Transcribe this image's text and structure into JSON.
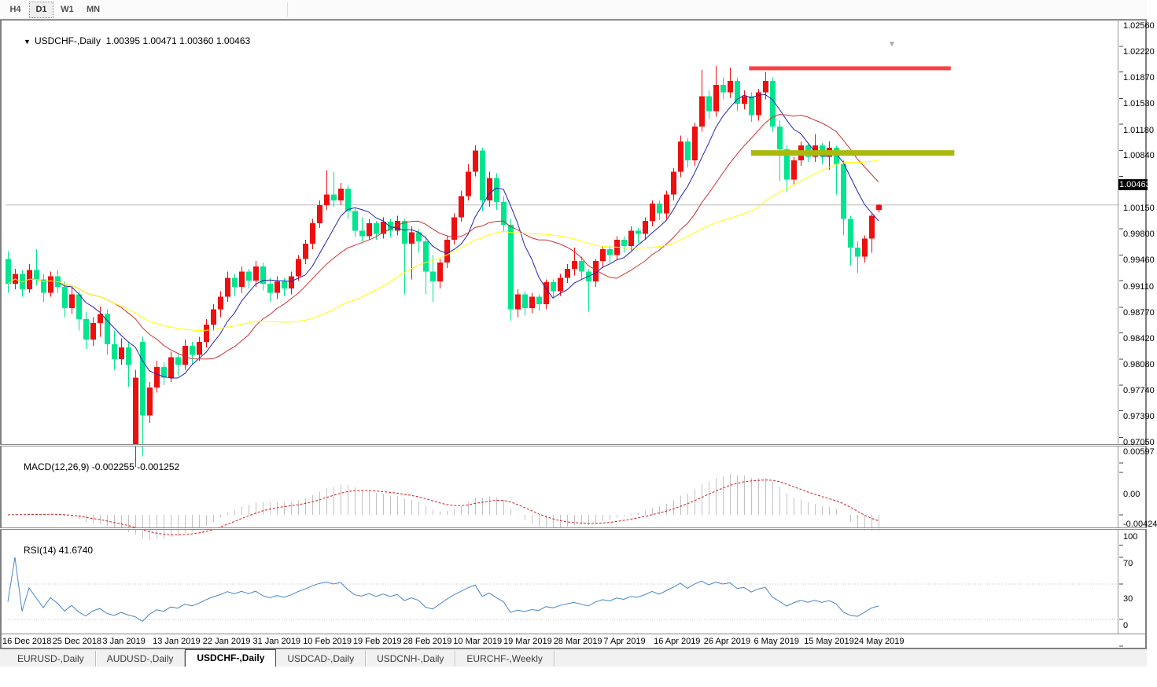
{
  "toolbar": {
    "buttons": [
      "H4",
      "D1",
      "W1",
      "MN"
    ],
    "active": "D1"
  },
  "header": {
    "collapse_icon": "▼",
    "symbol": "USDCHF-,Daily",
    "open": "1.00395",
    "high": "1.00471",
    "low": "1.00360",
    "close": "1.00463"
  },
  "price_axis": {
    "ticks": [
      "1.02560",
      "1.02220",
      "1.01870",
      "1.01530",
      "1.01180",
      "1.00840",
      "1.00150",
      "0.99800",
      "0.99460",
      "0.99110",
      "0.98770",
      "0.98420",
      "0.98080",
      "0.97740",
      "0.97390",
      "0.97050"
    ],
    "current_label": "1.00463"
  },
  "macd_panel": {
    "label": "MACD(12,26,9)",
    "values": "-0.002255 -0.001252",
    "ticks": [
      "0.00597",
      "0.00",
      "-0.00424"
    ]
  },
  "rsi_panel": {
    "label": "RSI(14)",
    "value": "41.6740",
    "ticks": [
      "100",
      "70",
      "30",
      "0"
    ]
  },
  "date_axis": {
    "labels": [
      "16 Dec 2018",
      "25 Dec 2018",
      "3 Jan 2019",
      "13 Jan 2019",
      "22 Jan 2019",
      "31 Jan 2019",
      "10 Feb 2019",
      "19 Feb 2019",
      "28 Feb 2019",
      "10 Mar 2019",
      "19 Mar 2019",
      "28 Mar 2019",
      "7 Apr 2019",
      "16 Apr 2019",
      "26 Apr 2019",
      "6 May 2019",
      "15 May 2019",
      "24 May 2019"
    ]
  },
  "tabs": {
    "items": [
      "EURUSD-,Daily",
      "AUDUSD-,Daily",
      "USDCHF-,Daily",
      "USDCAD-,Daily",
      "USDCNH-,Daily",
      "EURCHF-,Weekly"
    ],
    "active_index": 2
  },
  "colors": {
    "bull_candle": "#ee0f0f",
    "bear_candle": "#00e58f",
    "ma_fast": "#2323b4",
    "ma_mid": "#cd3232",
    "ma_slow": "#ffff00",
    "macd_hist": "#c2c2c2",
    "macd_signal": "#d02020",
    "rsi_line": "#4a86c8",
    "rsi_levels": "#c4c4c4",
    "resistance_line": "#f84343",
    "support_line": "#a9ba0d",
    "price_line": "#b8b8b8",
    "axis_tick": "#444444"
  },
  "chart_data": {
    "type": "candlestick",
    "symbol": "USDCHF",
    "timeframe": "Daily",
    "title": "USDCHF-,Daily",
    "y_range": [
      0.9705,
      1.0256
    ],
    "current_price": 1.00463,
    "last_bar": {
      "open": 1.00395,
      "high": 1.00471,
      "low": 1.0036,
      "close": 1.00463
    },
    "x_dates": [
      "16 Dec 2018",
      "25 Dec 2018",
      "3 Jan 2019",
      "13 Jan 2019",
      "22 Jan 2019",
      "31 Jan 2019",
      "10 Feb 2019",
      "19 Feb 2019",
      "28 Feb 2019",
      "10 Mar 2019",
      "19 Mar 2019",
      "28 Mar 2019",
      "7 Apr 2019",
      "16 Apr 2019",
      "26 Apr 2019",
      "6 May 2019",
      "15 May 2019",
      "24 May 2019"
    ],
    "moving_averages": [
      {
        "name": "fast",
        "period": 7,
        "color": "#2323b4"
      },
      {
        "name": "mid",
        "period": 16,
        "color": "#cd3232"
      },
      {
        "name": "slow",
        "period": 36,
        "color": "#ffff00"
      }
    ],
    "hlines": [
      {
        "name": "resistance",
        "price": 1.0227,
        "from_bar": 104.7,
        "to_bar": 133.2,
        "thickness": 5,
        "color": "#f84343"
      },
      {
        "name": "support-zone",
        "price": 1.0115,
        "from_bar": 105.0,
        "to_bar": 133.7,
        "thickness": 7,
        "color": "#a9ba0d"
      }
    ],
    "indicators": [
      {
        "name": "MACD",
        "params": "12,26,9",
        "current_main": -0.002255,
        "current_signal": -0.001252,
        "y_ticks": [
          0.00597,
          0,
          -0.00424
        ]
      },
      {
        "name": "RSI",
        "params": "14",
        "current": 41.674,
        "levels": [
          70,
          30
        ],
        "y_ticks": [
          100,
          70,
          30,
          0
        ]
      }
    ],
    "ohlc": [
      [
        0.9975,
        0.9985,
        0.993,
        0.9942
      ],
      [
        0.9942,
        0.9962,
        0.9935,
        0.9955
      ],
      [
        0.9955,
        0.996,
        0.9925,
        0.9935
      ],
      [
        0.9935,
        0.9968,
        0.993,
        0.996
      ],
      [
        0.996,
        0.9988,
        0.994,
        0.9948
      ],
      [
        0.9948,
        0.9955,
        0.9918,
        0.993
      ],
      [
        0.993,
        0.9958,
        0.9925,
        0.9952
      ],
      [
        0.9952,
        0.996,
        0.993,
        0.9938
      ],
      [
        0.9938,
        0.9945,
        0.9898,
        0.991
      ],
      [
        0.991,
        0.9938,
        0.9902,
        0.9928
      ],
      [
        0.9928,
        0.9932,
        0.988,
        0.9895
      ],
      [
        0.9895,
        0.9905,
        0.9856,
        0.9868
      ],
      [
        0.9868,
        0.9898,
        0.986,
        0.989
      ],
      [
        0.989,
        0.9912,
        0.9872,
        0.9902
      ],
      [
        0.9902,
        0.9908,
        0.9848,
        0.9862
      ],
      [
        0.9862,
        0.988,
        0.9828,
        0.9842
      ],
      [
        0.9842,
        0.987,
        0.9835,
        0.9858
      ],
      [
        0.9858,
        0.9865,
        0.9806,
        0.9835
      ],
      [
        0.973,
        0.9828,
        0.97,
        0.9818
      ],
      [
        0.9865,
        0.9872,
        0.9714,
        0.9768
      ],
      [
        0.9768,
        0.9812,
        0.9758,
        0.9805
      ],
      [
        0.9805,
        0.984,
        0.9798,
        0.9832
      ],
      [
        0.9832,
        0.9838,
        0.9808,
        0.9818
      ],
      [
        0.9818,
        0.9852,
        0.9812,
        0.9845
      ],
      [
        0.9845,
        0.985,
        0.982,
        0.9835
      ],
      [
        0.9835,
        0.9868,
        0.9828,
        0.986
      ],
      [
        0.986,
        0.9865,
        0.9836,
        0.9848
      ],
      [
        0.9848,
        0.9872,
        0.984,
        0.9865
      ],
      [
        0.9865,
        0.9895,
        0.9858,
        0.9888
      ],
      [
        0.9888,
        0.9915,
        0.988,
        0.9908
      ],
      [
        0.9908,
        0.9932,
        0.9898,
        0.9925
      ],
      [
        0.9925,
        0.9958,
        0.9918,
        0.995
      ],
      [
        0.995,
        0.9955,
        0.9926,
        0.9938
      ],
      [
        0.9938,
        0.9965,
        0.993,
        0.9958
      ],
      [
        0.9958,
        0.9962,
        0.9936,
        0.9946
      ],
      [
        0.9946,
        0.9972,
        0.9938,
        0.9965
      ],
      [
        0.9965,
        0.997,
        0.9933,
        0.9942
      ],
      [
        0.9942,
        0.995,
        0.9918,
        0.993
      ],
      [
        0.993,
        0.9952,
        0.9922,
        0.9945
      ],
      [
        0.9945,
        0.995,
        0.9926,
        0.9936
      ],
      [
        0.9936,
        0.9958,
        0.9928,
        0.9952
      ],
      [
        0.9952,
        0.998,
        0.9946,
        0.9975
      ],
      [
        0.9975,
        1.0,
        0.9968,
        0.9995
      ],
      [
        0.9995,
        1.0028,
        0.9988,
        1.0022
      ],
      [
        1.0022,
        1.0052,
        1.0016,
        1.0046
      ],
      [
        1.0046,
        1.0092,
        1.004,
        1.006
      ],
      [
        1.006,
        1.009,
        1.0044,
        1.0052
      ],
      [
        1.0052,
        1.0075,
        1.0046,
        1.0068
      ],
      [
        1.0068,
        1.0072,
        1.0028,
        1.0038
      ],
      [
        1.0038,
        1.0042,
        1.0004,
        1.0012
      ],
      [
        1.0012,
        1.003,
        0.9998,
        1.0005
      ],
      [
        1.0005,
        1.0028,
        1.0,
        1.0022
      ],
      [
        1.0022,
        1.0025,
        1.0,
        1.0008
      ],
      [
        1.0008,
        1.003,
        1.0002,
        1.0024
      ],
      [
        1.0024,
        1.0028,
        1.0004,
        1.0012
      ],
      [
        1.0012,
        1.0032,
        1.0006,
        1.0025
      ],
      [
        1.0025,
        1.0028,
        0.9928,
        0.9995
      ],
      [
        0.9995,
        1.0018,
        0.9948,
        1.001
      ],
      [
        1.001,
        1.0015,
        0.9983,
        0.9998
      ],
      [
        0.9998,
        1.0005,
        0.9928,
        0.9958
      ],
      [
        0.9958,
        0.998,
        0.9918,
        0.9945
      ],
      [
        0.9945,
        0.9975,
        0.9936,
        0.997
      ],
      [
        0.997,
        1.0005,
        0.9963,
        1.0
      ],
      [
        1.0,
        1.0035,
        0.9994,
        1.003
      ],
      [
        1.003,
        1.0065,
        1.0024,
        1.0058
      ],
      [
        1.0058,
        1.01,
        1.0052,
        1.009
      ],
      [
        1.009,
        1.0125,
        1.0084,
        1.0118
      ],
      [
        1.0118,
        1.0122,
        1.0038,
        1.0052
      ],
      [
        1.0052,
        1.009,
        1.0044,
        1.0082
      ],
      [
        1.0082,
        1.0088,
        1.004,
        1.005
      ],
      [
        1.005,
        1.0058,
        1.001,
        1.002
      ],
      [
        1.002,
        1.0028,
        0.9893,
        0.9908
      ],
      [
        0.9908,
        0.9935,
        0.9898,
        0.9928
      ],
      [
        0.9928,
        0.9932,
        0.99,
        0.991
      ],
      [
        0.991,
        0.993,
        0.9903,
        0.9925
      ],
      [
        0.9925,
        0.9928,
        0.9906,
        0.9915
      ],
      [
        0.9915,
        0.9948,
        0.9908,
        0.9944
      ],
      [
        0.9944,
        0.9948,
        0.9923,
        0.9932
      ],
      [
        0.9932,
        0.9955,
        0.9926,
        0.995
      ],
      [
        0.995,
        0.9968,
        0.9943,
        0.9962
      ],
      [
        0.9962,
        0.999,
        0.9953,
        0.9972
      ],
      [
        0.9972,
        0.9978,
        0.9948,
        0.9958
      ],
      [
        0.9958,
        0.9962,
        0.9905,
        0.9945
      ],
      [
        0.9945,
        0.9975,
        0.9938,
        0.9972
      ],
      [
        0.9972,
        0.9992,
        0.9963,
        0.9988
      ],
      [
        0.9988,
        0.9992,
        0.997,
        0.998
      ],
      [
        0.998,
        1.0005,
        0.9973,
        1.0
      ],
      [
        1.0,
        1.0005,
        0.9983,
        0.9992
      ],
      [
        0.9992,
        1.0018,
        0.9986,
        1.0012
      ],
      [
        1.0012,
        1.0016,
        0.9996,
        1.0008
      ],
      [
        1.0008,
        1.003,
        1.0,
        1.0025
      ],
      [
        1.0025,
        1.0052,
        1.0018,
        1.0048
      ],
      [
        1.0048,
        1.0052,
        1.0026,
        1.0035
      ],
      [
        1.0035,
        1.0065,
        1.0028,
        1.006
      ],
      [
        1.006,
        1.0095,
        1.0053,
        1.009
      ],
      [
        1.009,
        1.0138,
        1.0083,
        1.013
      ],
      [
        1.013,
        1.0135,
        1.0096,
        1.0105
      ],
      [
        1.0105,
        1.0155,
        1.0098,
        1.015
      ],
      [
        1.015,
        1.0225,
        1.0143,
        1.019
      ],
      [
        1.019,
        1.0198,
        1.016,
        1.017
      ],
      [
        1.017,
        1.023,
        1.0163,
        1.0205
      ],
      [
        1.0205,
        1.0215,
        1.0186,
        1.0195
      ],
      [
        1.0195,
        1.0228,
        1.0188,
        1.021
      ],
      [
        1.021,
        1.0215,
        1.017,
        1.018
      ],
      [
        1.018,
        1.0198,
        1.0173,
        1.019
      ],
      [
        1.019,
        1.0195,
        1.0156,
        1.0165
      ],
      [
        1.0165,
        1.02,
        1.0158,
        1.0195
      ],
      [
        1.0195,
        1.0222,
        1.0186,
        1.021
      ],
      [
        1.021,
        1.0215,
        1.0143,
        1.015
      ],
      [
        1.015,
        1.0158,
        1.0078,
        1.012
      ],
      [
        1.012,
        1.0125,
        1.0063,
        1.008
      ],
      [
        1.008,
        1.011,
        1.0073,
        1.0105
      ],
      [
        1.0105,
        1.013,
        1.0098,
        1.0125
      ],
      [
        1.0125,
        1.0128,
        1.0103,
        1.011
      ],
      [
        1.011,
        1.014,
        1.0103,
        1.0125
      ],
      [
        1.0125,
        1.0128,
        1.01,
        1.011
      ],
      [
        1.011,
        1.013,
        1.0093,
        1.0122
      ],
      [
        1.0122,
        1.0125,
        1.006,
        1.01
      ],
      [
        1.01,
        1.0105,
        1.0006,
        1.0028
      ],
      [
        1.0028,
        1.0032,
        0.9966,
        0.999
      ],
      [
        0.999,
        0.9998,
        0.9956,
        0.9978
      ],
      [
        0.9978,
        1.0006,
        0.997,
        1.0002
      ],
      [
        1.0002,
        1.0035,
        0.9983,
        1.0032
      ],
      [
        1.00395,
        1.00471,
        1.0036,
        1.00463
      ]
    ]
  }
}
